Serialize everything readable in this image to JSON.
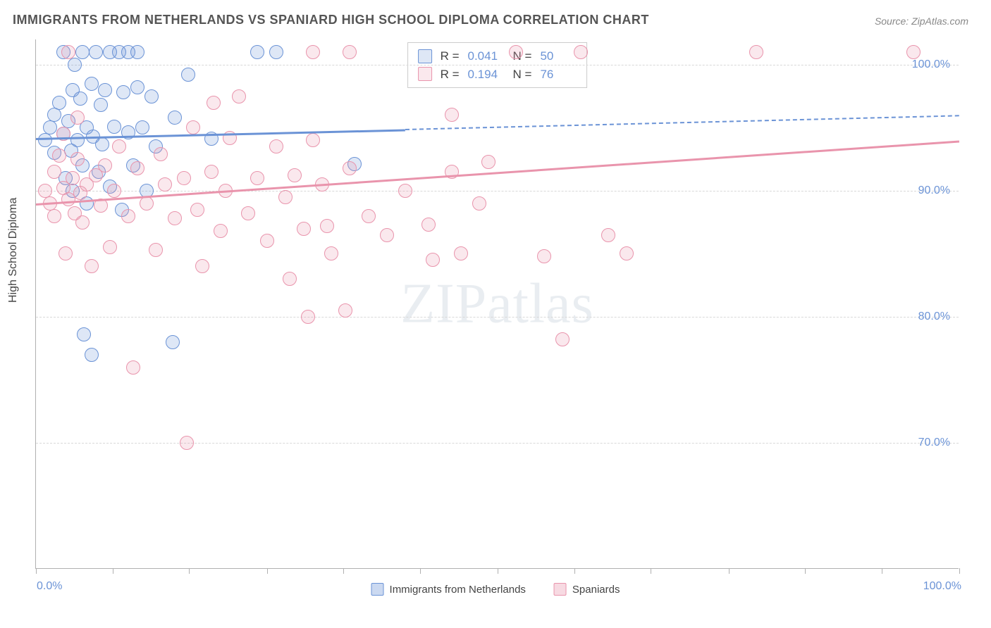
{
  "title": "IMMIGRANTS FROM NETHERLANDS VS SPANIARD HIGH SCHOOL DIPLOMA CORRELATION CHART",
  "source": "Source: ZipAtlas.com",
  "ylabel": "High School Diploma",
  "watermark": "ZIPatlas",
  "chart": {
    "type": "scatter",
    "xlim": [
      0,
      100
    ],
    "ylim": [
      60,
      102
    ],
    "yticks": [
      70,
      80,
      90,
      100
    ],
    "ytick_labels": [
      "70.0%",
      "80.0%",
      "90.0%",
      "100.0%"
    ],
    "xtick_positions": [
      0,
      8.3,
      16.6,
      25,
      33.3,
      41.6,
      50,
      58.3,
      66.6,
      75,
      83.3,
      91.6,
      100
    ],
    "xtick_labels": {
      "left": "0.0%",
      "right": "100.0%"
    },
    "background_color": "#ffffff",
    "grid_color": "#d8d8d8",
    "marker_radius": 10,
    "marker_border": 1.5,
    "marker_fill_opacity": 0.22,
    "series": [
      {
        "key": "netherlands",
        "label": "Immigrants from Netherlands",
        "color": "#6b93d6",
        "fill": "rgba(107,147,214,0.22)",
        "R": "0.041",
        "N": "50",
        "trend": {
          "x1": 0,
          "y1": 94.2,
          "x2_solid": 40,
          "y2_solid": 94.9,
          "x2": 100,
          "y2": 96.0
        },
        "points": [
          {
            "x": 1,
            "y": 94
          },
          {
            "x": 1.5,
            "y": 95
          },
          {
            "x": 2,
            "y": 93
          },
          {
            "x": 2,
            "y": 96
          },
          {
            "x": 2.5,
            "y": 97
          },
          {
            "x": 3,
            "y": 101
          },
          {
            "x": 3,
            "y": 94.5
          },
          {
            "x": 3.2,
            "y": 91
          },
          {
            "x": 3.5,
            "y": 95.5
          },
          {
            "x": 3.8,
            "y": 93.2
          },
          {
            "x": 4,
            "y": 98
          },
          {
            "x": 4,
            "y": 90
          },
          {
            "x": 4.2,
            "y": 100
          },
          {
            "x": 4.5,
            "y": 94
          },
          {
            "x": 4.8,
            "y": 97.3
          },
          {
            "x": 5,
            "y": 101
          },
          {
            "x": 5,
            "y": 92
          },
          {
            "x": 5.2,
            "y": 78.6
          },
          {
            "x": 5.5,
            "y": 95
          },
          {
            "x": 5.5,
            "y": 89
          },
          {
            "x": 6,
            "y": 98.5
          },
          {
            "x": 6,
            "y": 77
          },
          {
            "x": 6.2,
            "y": 94.3
          },
          {
            "x": 6.5,
            "y": 101
          },
          {
            "x": 6.8,
            "y": 91.5
          },
          {
            "x": 7,
            "y": 96.8
          },
          {
            "x": 7.2,
            "y": 93.7
          },
          {
            "x": 7.5,
            "y": 98.0
          },
          {
            "x": 8,
            "y": 101
          },
          {
            "x": 8,
            "y": 90.3
          },
          {
            "x": 8.5,
            "y": 95.1
          },
          {
            "x": 9,
            "y": 101
          },
          {
            "x": 9.3,
            "y": 88.5
          },
          {
            "x": 9.5,
            "y": 97.8
          },
          {
            "x": 10,
            "y": 94.6
          },
          {
            "x": 10,
            "y": 101
          },
          {
            "x": 10.5,
            "y": 92.0
          },
          {
            "x": 11,
            "y": 98.2
          },
          {
            "x": 11,
            "y": 101
          },
          {
            "x": 11.5,
            "y": 95.0
          },
          {
            "x": 12,
            "y": 90.0
          },
          {
            "x": 12.5,
            "y": 97.5
          },
          {
            "x": 13,
            "y": 93.5
          },
          {
            "x": 14.8,
            "y": 78.0
          },
          {
            "x": 15,
            "y": 95.8
          },
          {
            "x": 16.5,
            "y": 99.2
          },
          {
            "x": 19,
            "y": 94.1
          },
          {
            "x": 24,
            "y": 101
          },
          {
            "x": 26,
            "y": 101
          },
          {
            "x": 34.5,
            "y": 92.1
          }
        ]
      },
      {
        "key": "spaniards",
        "label": "Spaniards",
        "color": "#e994ac",
        "fill": "rgba(233,148,172,0.22)",
        "R": "0.194",
        "N": "76",
        "trend": {
          "x1": 0,
          "y1": 89.0,
          "x2_solid": 100,
          "y2_solid": 94.0,
          "x2": 100,
          "y2": 94.0
        },
        "points": [
          {
            "x": 1,
            "y": 90
          },
          {
            "x": 1.5,
            "y": 89
          },
          {
            "x": 2,
            "y": 91.5
          },
          {
            "x": 2,
            "y": 88
          },
          {
            "x": 2.5,
            "y": 92.8
          },
          {
            "x": 3,
            "y": 90.2
          },
          {
            "x": 3,
            "y": 94.5
          },
          {
            "x": 3.2,
            "y": 85
          },
          {
            "x": 3.5,
            "y": 89.3
          },
          {
            "x": 3.5,
            "y": 101
          },
          {
            "x": 4,
            "y": 91.0
          },
          {
            "x": 4.2,
            "y": 88.2
          },
          {
            "x": 4.5,
            "y": 92.5
          },
          {
            "x": 4.5,
            "y": 95.8
          },
          {
            "x": 4.8,
            "y": 89.8
          },
          {
            "x": 5,
            "y": 87.5
          },
          {
            "x": 5.5,
            "y": 90.5
          },
          {
            "x": 6,
            "y": 84.0
          },
          {
            "x": 6.5,
            "y": 91.2
          },
          {
            "x": 7,
            "y": 88.8
          },
          {
            "x": 7.5,
            "y": 92.0
          },
          {
            "x": 8,
            "y": 85.5
          },
          {
            "x": 8.5,
            "y": 90.0
          },
          {
            "x": 9,
            "y": 93.5
          },
          {
            "x": 10,
            "y": 88.0
          },
          {
            "x": 10.5,
            "y": 76.0
          },
          {
            "x": 11,
            "y": 91.8
          },
          {
            "x": 12,
            "y": 89.0
          },
          {
            "x": 13,
            "y": 85.3
          },
          {
            "x": 13.5,
            "y": 92.9
          },
          {
            "x": 14,
            "y": 90.5
          },
          {
            "x": 15,
            "y": 87.8
          },
          {
            "x": 16,
            "y": 91.0
          },
          {
            "x": 16.3,
            "y": 70.0
          },
          {
            "x": 17,
            "y": 95.0
          },
          {
            "x": 17.5,
            "y": 88.5
          },
          {
            "x": 18,
            "y": 84.0
          },
          {
            "x": 19,
            "y": 91.5
          },
          {
            "x": 19.2,
            "y": 97.0
          },
          {
            "x": 20,
            "y": 86.8
          },
          {
            "x": 20.5,
            "y": 90.0
          },
          {
            "x": 21,
            "y": 94.2
          },
          {
            "x": 22,
            "y": 97.5
          },
          {
            "x": 23,
            "y": 88.2
          },
          {
            "x": 24,
            "y": 91.0
          },
          {
            "x": 25,
            "y": 86.0
          },
          {
            "x": 26,
            "y": 93.5
          },
          {
            "x": 27,
            "y": 89.5
          },
          {
            "x": 27.5,
            "y": 83.0
          },
          {
            "x": 28,
            "y": 91.2
          },
          {
            "x": 29,
            "y": 87.0
          },
          {
            "x": 29.5,
            "y": 80.0
          },
          {
            "x": 30,
            "y": 94.0
          },
          {
            "x": 30,
            "y": 101
          },
          {
            "x": 31,
            "y": 90.5
          },
          {
            "x": 31.5,
            "y": 87.2
          },
          {
            "x": 32,
            "y": 85.0
          },
          {
            "x": 33.5,
            "y": 80.5
          },
          {
            "x": 34,
            "y": 91.8
          },
          {
            "x": 34,
            "y": 101
          },
          {
            "x": 36,
            "y": 88.0
          },
          {
            "x": 38,
            "y": 86.5
          },
          {
            "x": 40,
            "y": 90.0
          },
          {
            "x": 42.5,
            "y": 87.3
          },
          {
            "x": 43,
            "y": 84.5
          },
          {
            "x": 45,
            "y": 91.5
          },
          {
            "x": 45,
            "y": 96.0
          },
          {
            "x": 46,
            "y": 85.0
          },
          {
            "x": 48,
            "y": 89.0
          },
          {
            "x": 49,
            "y": 92.3
          },
          {
            "x": 52,
            "y": 101
          },
          {
            "x": 55,
            "y": 84.8
          },
          {
            "x": 57,
            "y": 78.2
          },
          {
            "x": 59,
            "y": 101
          },
          {
            "x": 62,
            "y": 86.5
          },
          {
            "x": 64,
            "y": 85.0
          },
          {
            "x": 78,
            "y": 101
          },
          {
            "x": 95,
            "y": 101
          }
        ]
      }
    ],
    "stats_labels": {
      "R": "R =",
      "N": "N ="
    },
    "bottom_legend": [
      {
        "label": "Immigrants from Netherlands",
        "color": "#6b93d6",
        "fill": "rgba(107,147,214,0.35)"
      },
      {
        "label": "Spaniards",
        "color": "#e994ac",
        "fill": "rgba(233,148,172,0.35)"
      }
    ]
  }
}
